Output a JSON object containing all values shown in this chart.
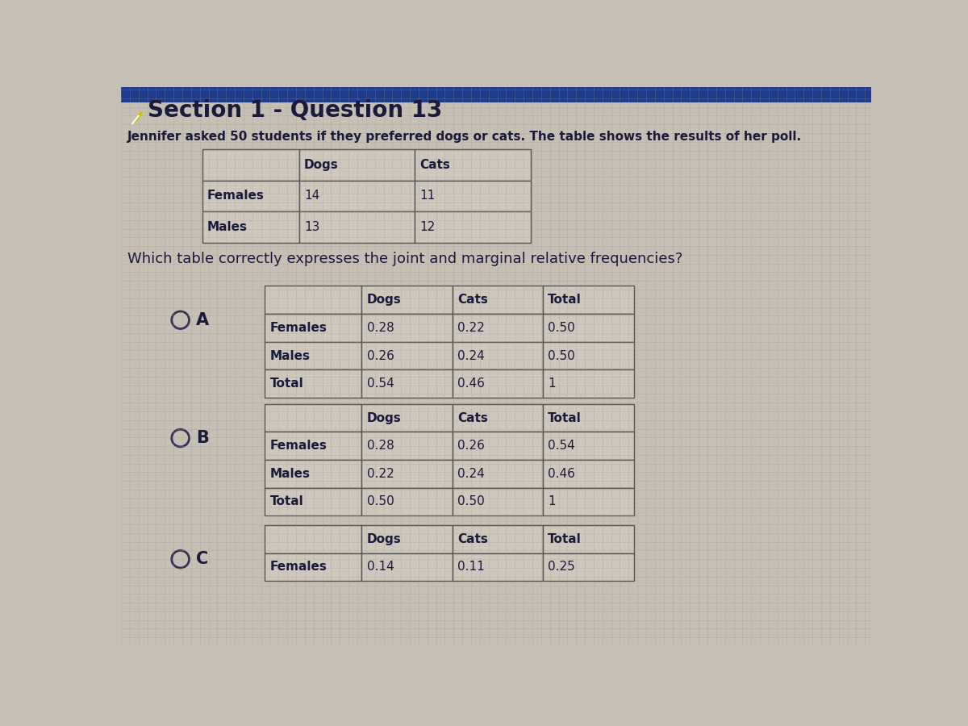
{
  "title": "Section 1 - Question 13",
  "description": "Jennifer asked 50 students if they preferred dogs or cats. The table shows the results of her poll.",
  "question": "Which table correctly expresses the joint and marginal relative frequencies?",
  "poll_table": {
    "headers": [
      "",
      "Dogs",
      "Cats"
    ],
    "rows": [
      [
        "Females",
        "14",
        "11"
      ],
      [
        "Males",
        "13",
        "12"
      ]
    ]
  },
  "option_A": {
    "label": "A",
    "headers": [
      "",
      "Dogs",
      "Cats",
      "Total"
    ],
    "rows": [
      [
        "Females",
        "0.28",
        "0.22",
        "0.50"
      ],
      [
        "Males",
        "0.26",
        "0.24",
        "0.50"
      ],
      [
        "Total",
        "0.54",
        "0.46",
        "1"
      ]
    ]
  },
  "option_B": {
    "label": "B",
    "headers": [
      "",
      "Dogs",
      "Cats",
      "Total"
    ],
    "rows": [
      [
        "Females",
        "0.28",
        "0.26",
        "0.54"
      ],
      [
        "Males",
        "0.22",
        "0.24",
        "0.46"
      ],
      [
        "Total",
        "0.50",
        "0.50",
        "1"
      ]
    ]
  },
  "option_C": {
    "label": "C",
    "headers": [
      "",
      "Dogs",
      "Cats",
      "Total"
    ],
    "rows": [
      [
        "Females",
        "0.14",
        "0.11",
        "0.25"
      ]
    ]
  },
  "bg_color": "#c5bfb5",
  "cell_bg_light": "#cdc7bd",
  "cell_bg_dark": "#b8b2a8",
  "border_color": "#555550",
  "text_color": "#1a1a3a",
  "title_bar_color": "#1e3a8a",
  "pencil_color": "#c8c800",
  "radio_color": "#333355",
  "title_fontsize": 20,
  "desc_fontsize": 11,
  "question_fontsize": 13,
  "table_fontsize": 11
}
